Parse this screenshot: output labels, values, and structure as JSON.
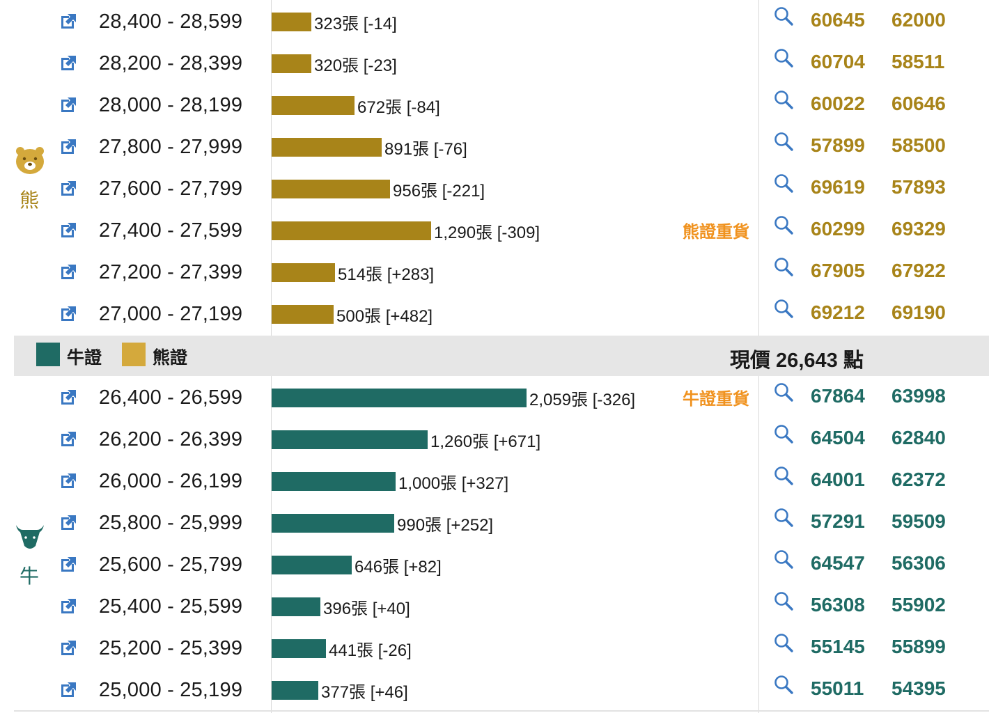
{
  "bear_side": {
    "label": "熊",
    "icon": "bear-face-icon",
    "color": "#a88419",
    "rows": [
      {
        "range": "28,400 - 28,599",
        "volume": 323,
        "bar_label": "323張 [-14]",
        "heavy": "",
        "code1": "60645",
        "code2": "62000"
      },
      {
        "range": "28,200 - 28,399",
        "volume": 320,
        "bar_label": "320張 [-23]",
        "heavy": "",
        "code1": "60704",
        "code2": "58511"
      },
      {
        "range": "28,000 - 28,199",
        "volume": 672,
        "bar_label": "672張 [-84]",
        "heavy": "",
        "code1": "60022",
        "code2": "60646"
      },
      {
        "range": "27,800 - 27,999",
        "volume": 891,
        "bar_label": "891張 [-76]",
        "heavy": "",
        "code1": "57899",
        "code2": "58500"
      },
      {
        "range": "27,600 - 27,799",
        "volume": 956,
        "bar_label": "956張 [-221]",
        "heavy": "",
        "code1": "69619",
        "code2": "57893"
      },
      {
        "range": "27,400 - 27,599",
        "volume": 1290,
        "bar_label": "1,290張 [-309]",
        "heavy": "熊證重貨",
        "code1": "60299",
        "code2": "69329"
      },
      {
        "range": "27,200 - 27,399",
        "volume": 514,
        "bar_label": "514張 [+283]",
        "heavy": "",
        "code1": "67905",
        "code2": "67922"
      },
      {
        "range": "27,000 - 27,199",
        "volume": 500,
        "bar_label": "500張 [+482]",
        "heavy": "",
        "code1": "69212",
        "code2": "69190"
      }
    ]
  },
  "legend": {
    "bull_label": "牛證",
    "bull_color": "#1f6b64",
    "bear_label": "熊證",
    "bear_color": "#d4a93c",
    "price": "現價 26,643 點"
  },
  "bull_side": {
    "label": "牛",
    "icon": "bull-head-icon",
    "color": "#1f6b64",
    "rows": [
      {
        "range": "26,400 - 26,599",
        "volume": 2059,
        "bar_label": "2,059張 [-326]",
        "heavy": "牛證重貨",
        "code1": "67864",
        "code2": "63998"
      },
      {
        "range": "26,200 - 26,399",
        "volume": 1260,
        "bar_label": "1,260張 [+671]",
        "heavy": "",
        "code1": "64504",
        "code2": "62840"
      },
      {
        "range": "26,000 - 26,199",
        "volume": 1000,
        "bar_label": "1,000張 [+327]",
        "heavy": "",
        "code1": "64001",
        "code2": "62372"
      },
      {
        "range": "25,800 - 25,999",
        "volume": 990,
        "bar_label": "990張 [+252]",
        "heavy": "",
        "code1": "57291",
        "code2": "59509"
      },
      {
        "range": "25,600 - 25,799",
        "volume": 646,
        "bar_label": "646張 [+82]",
        "heavy": "",
        "code1": "64547",
        "code2": "56306"
      },
      {
        "range": "25,400 - 25,599",
        "volume": 396,
        "bar_label": "396張 [+40]",
        "heavy": "",
        "code1": "56308",
        "code2": "55902"
      },
      {
        "range": "25,200 - 25,399",
        "volume": 441,
        "bar_label": "441張 [-26]",
        "heavy": "",
        "code1": "55145",
        "code2": "55899"
      },
      {
        "range": "25,000 - 25,199",
        "volume": 377,
        "bar_label": "377張 [+46]",
        "heavy": "",
        "code1": "55011",
        "code2": "54395"
      }
    ]
  }
}
